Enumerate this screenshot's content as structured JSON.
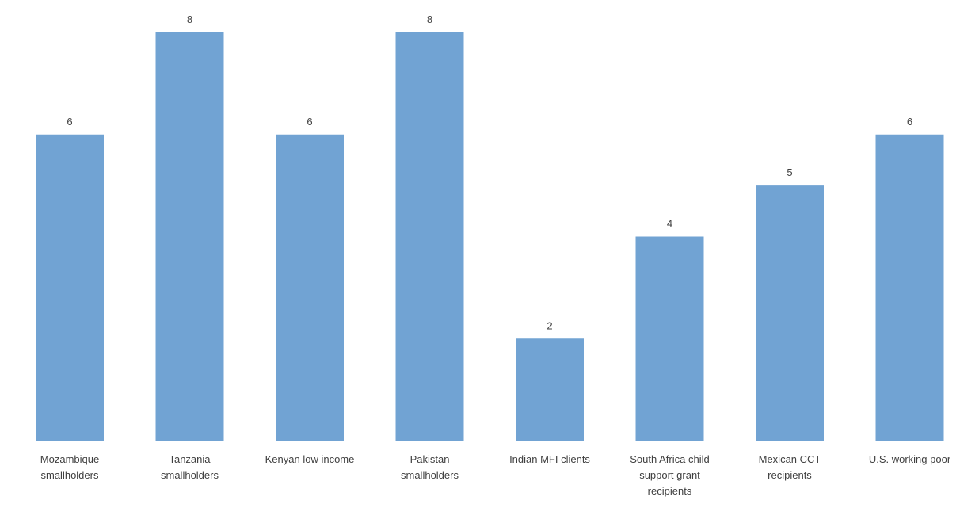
{
  "chart_data": {
    "type": "bar",
    "title": "",
    "xlabel": "",
    "ylabel": "",
    "categories": [
      [
        "Mozambique",
        "smallholders"
      ],
      [
        "Tanzania",
        "smallholders"
      ],
      [
        "Kenyan low income"
      ],
      [
        "Pakistan",
        "smallholders"
      ],
      [
        "Indian MFI clients"
      ],
      [
        "South Africa child",
        "support grant",
        "recipients"
      ],
      [
        "Mexican CCT",
        "recipients"
      ],
      [
        "U.S. working poor"
      ]
    ],
    "values": [
      6,
      8,
      6,
      8,
      2,
      4,
      5,
      6
    ],
    "data_labels": [
      "6",
      "8",
      "6",
      "8",
      "2",
      "4",
      "5",
      "6"
    ],
    "ylim": [
      0,
      8
    ],
    "grid": false,
    "legend": "none",
    "bar_color": "#71a3d3",
    "axis_color": "#d9d9d9",
    "label_color": "#404040"
  }
}
